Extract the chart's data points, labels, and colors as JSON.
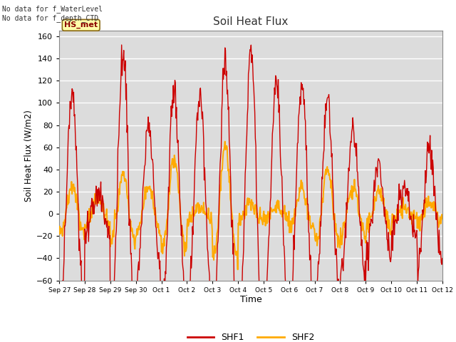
{
  "title": "Soil Heat Flux",
  "xlabel": "Time",
  "ylabel": "Soil Heat Flux (W/m2)",
  "ylim": [
    -60,
    165
  ],
  "yticks": [
    -60,
    -40,
    -20,
    0,
    20,
    40,
    60,
    80,
    100,
    120,
    140,
    160
  ],
  "annotation_text": "No data for f_WaterLevel\nNo data for f_depth_CTD",
  "legend_box_label": "HS_met",
  "legend_entries": [
    "SHF1",
    "SHF2"
  ],
  "shf1_color": "#cc0000",
  "shf2_color": "#ffaa00",
  "background_color": "#ffffff",
  "plot_bg_color": "#dcdcdc",
  "grid_color": "#ffffff",
  "xtick_labels": [
    "Sep 27",
    "Sep 28",
    "Sep 29",
    "Sep 30",
    "Oct 1",
    "Oct 2",
    "Oct 3",
    "Oct 4",
    "Oct 5",
    "Oct 6",
    "Oct 7",
    "Oct 8",
    "Oct 9",
    "Oct 10",
    "Oct 11",
    "Oct 12"
  ],
  "n_days": 15,
  "points_per_day": 48
}
